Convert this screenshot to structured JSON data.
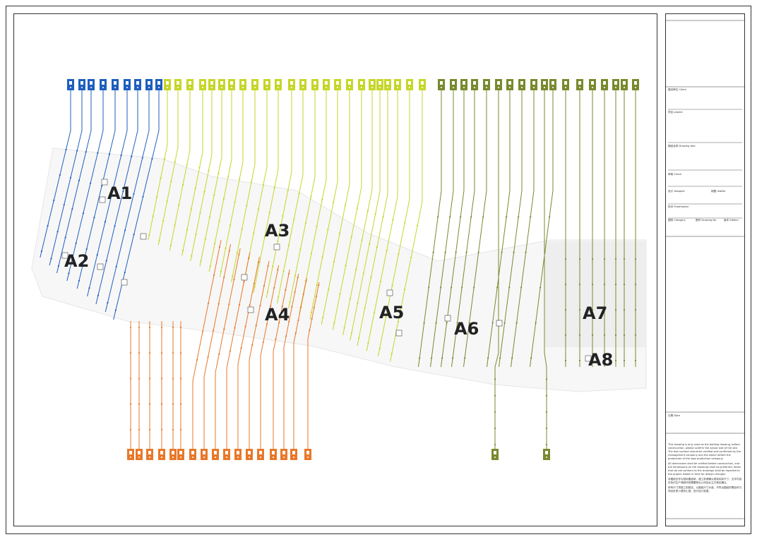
{
  "zones": [
    "A1",
    "A2",
    "A3",
    "A4",
    "A5",
    "A6",
    "A7",
    "A8"
  ],
  "title_block": {
    "client": "建设单位 Client",
    "project": "项目 project",
    "drawing_title": "图纸名称 Drawing title",
    "check": "审核 Check",
    "designer": "设计 designer",
    "drafter": "制图 drafter",
    "proofreader": "校对 Proofreader",
    "category": "图别 Category",
    "drawing_no": "图号 Drawing No",
    "edition": "版本 Edition",
    "date": "日期 Date"
  },
  "notes": [
    "This drawing is only used as the bidding drawing, before construction, please confirm the actual size of the site. The text content should be verified and confirmed by the management company and the owner before the production of the logo production company.",
    "All dimensions shall be verified before construction, and the dimensions on the drawings shall be preferred. Items that do not conform to the drawings shall be reported to the project leader in time for design changes.",
    "本图纸仅作为招标图纸用，施工前请确认现场实际尺寸，文字内容在标识生产商制作前需要物业公司及业主方核实确认。",
    "所有尺寸须施工前核实，以图纸尺寸为准，不符合图纸的需及时与项目负责人联系汇报，进行设计变更。"
  ]
}
